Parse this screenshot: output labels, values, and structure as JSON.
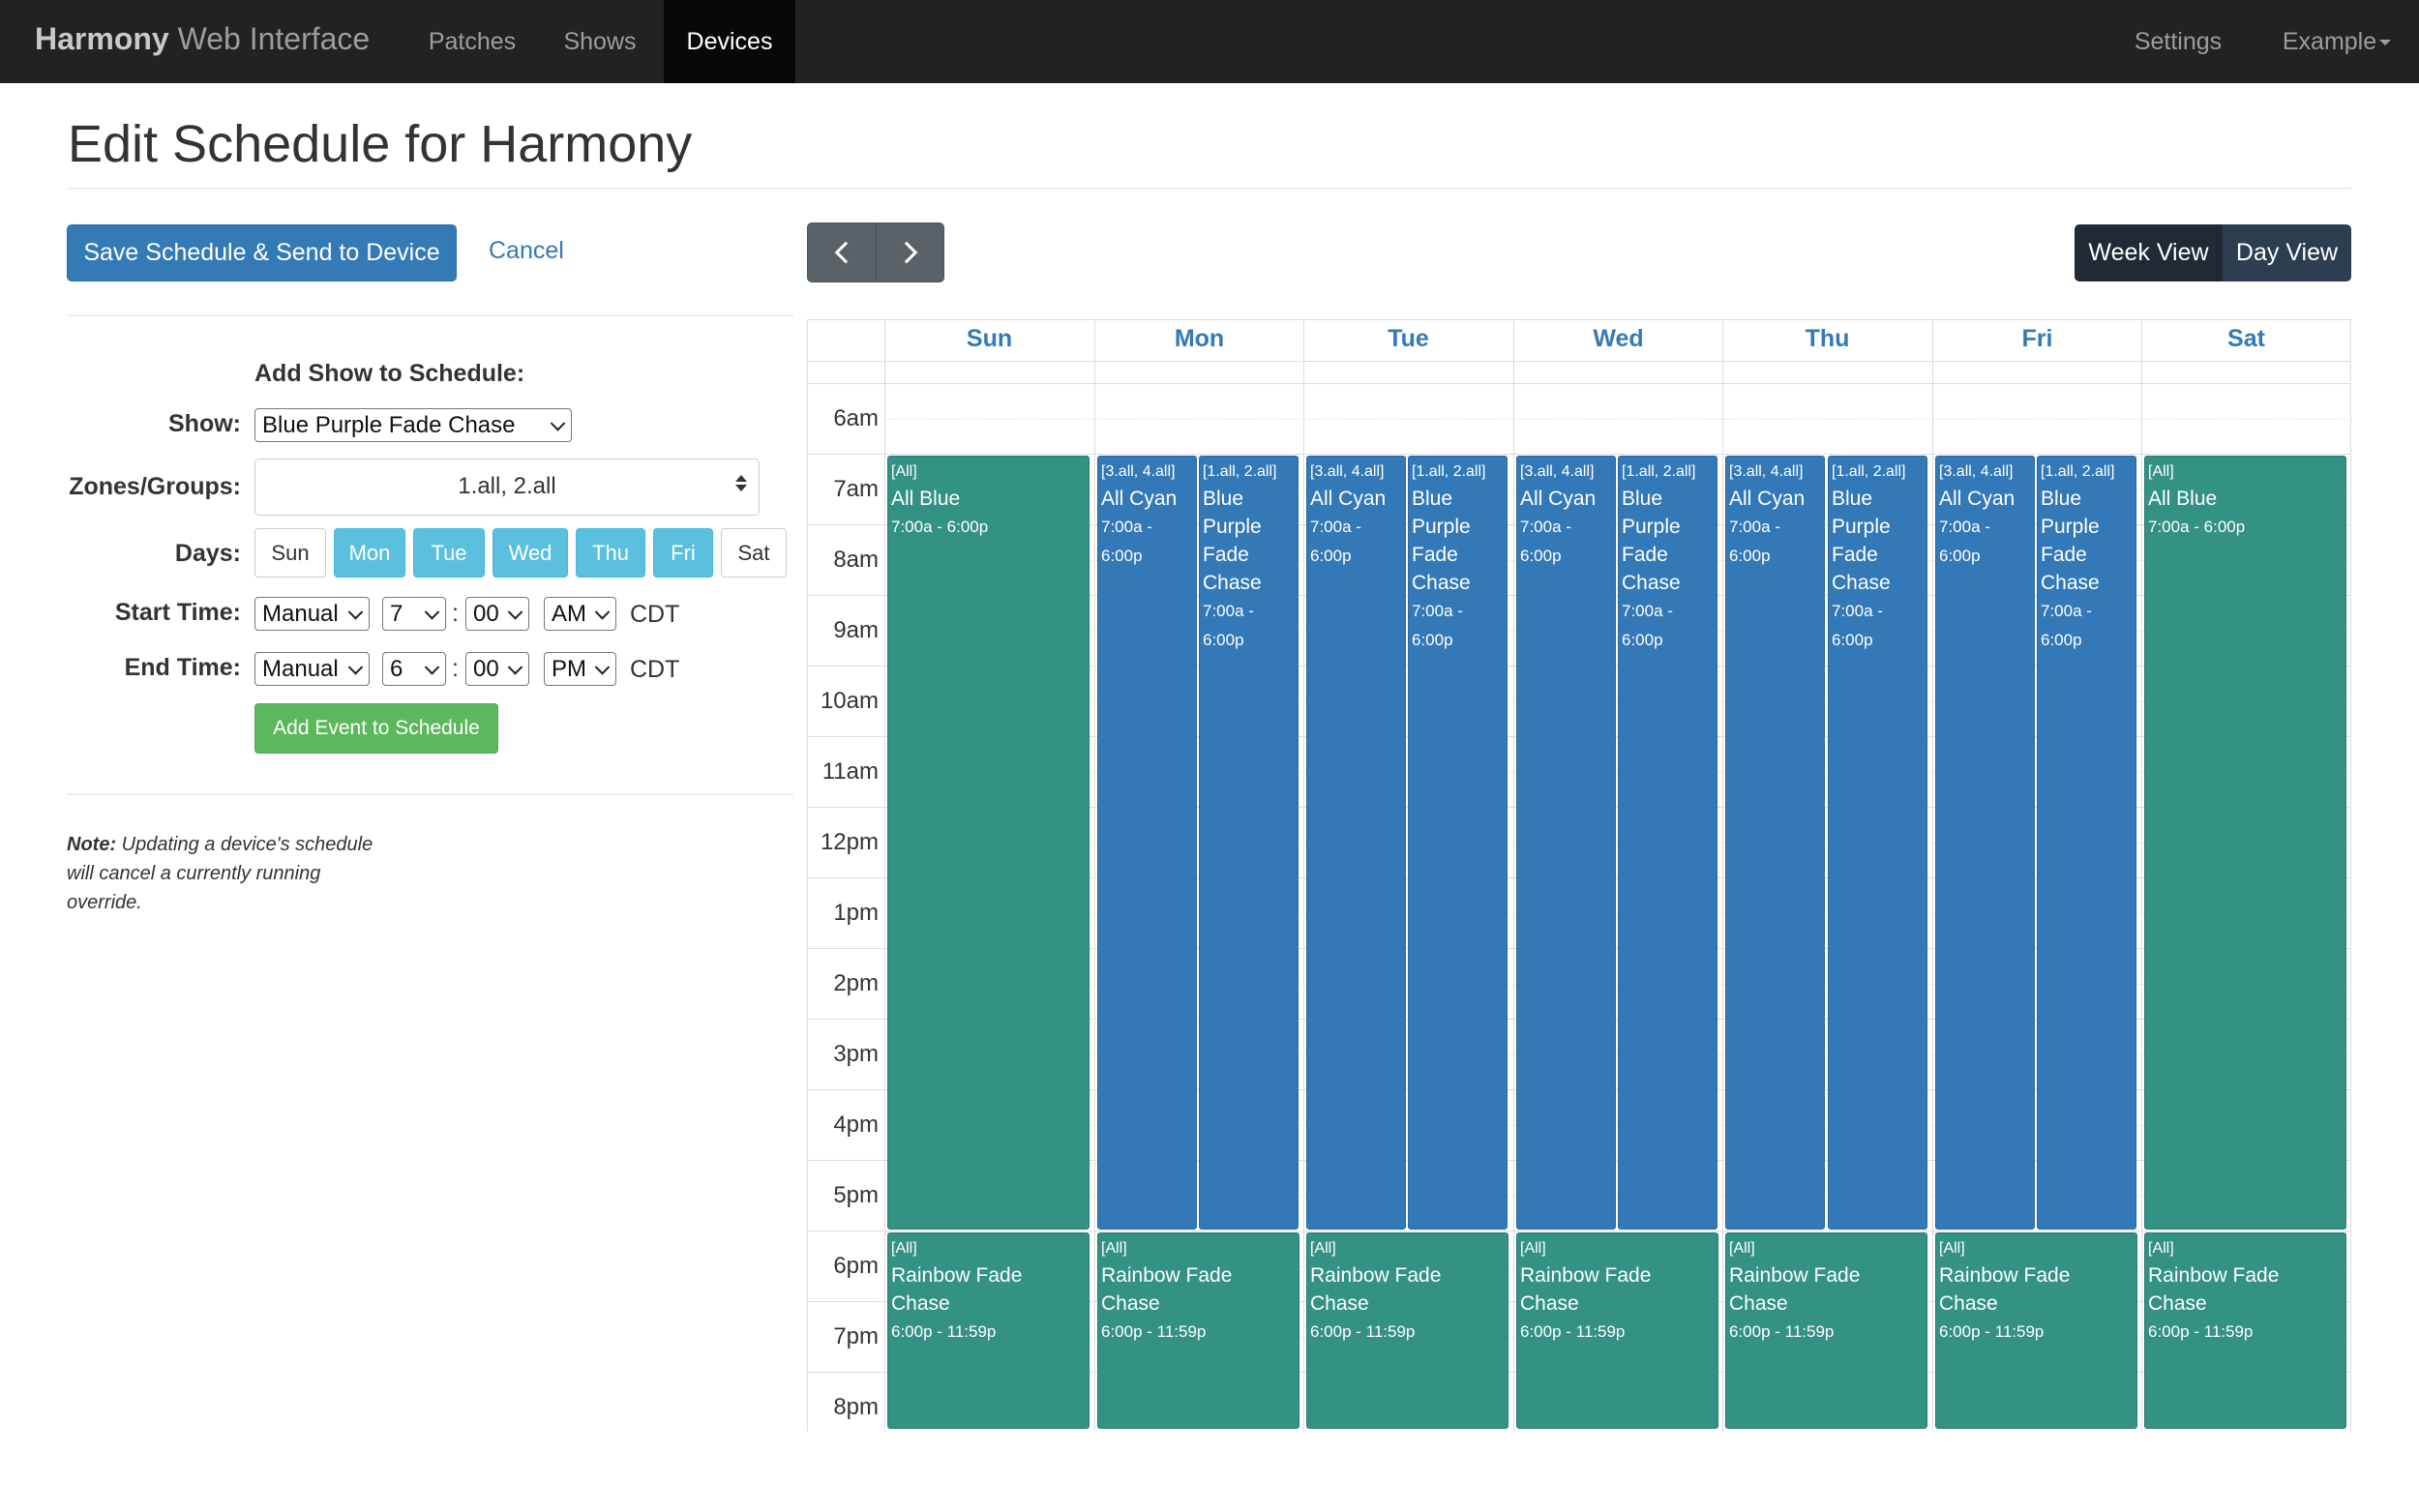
{
  "navbar": {
    "brand_bold": "Harmony",
    "brand_rest": " Web Interface",
    "links": [
      "Patches",
      "Shows",
      "Devices"
    ],
    "active": "Devices",
    "settings": "Settings",
    "user": "Example"
  },
  "page": {
    "title": "Edit Schedule for Harmony"
  },
  "toolbar": {
    "save_label": "Save Schedule & Send to Device",
    "cancel_label": "Cancel"
  },
  "form": {
    "heading": "Add Show to Schedule:",
    "show_label": "Show:",
    "show_value": "Blue Purple Fade Chase",
    "zones_label": "Zones/Groups:",
    "zones_value": "1.all, 2.all",
    "days_label": "Days:",
    "days": [
      {
        "label": "Sun",
        "selected": false
      },
      {
        "label": "Mon",
        "selected": true
      },
      {
        "label": "Tue",
        "selected": true
      },
      {
        "label": "Wed",
        "selected": true
      },
      {
        "label": "Thu",
        "selected": true
      },
      {
        "label": "Fri",
        "selected": true
      },
      {
        "label": "Sat",
        "selected": false
      }
    ],
    "start_label": "Start Time:",
    "start": {
      "mode": "Manual",
      "hour": "7",
      "minute": "00",
      "ampm": "AM"
    },
    "end_label": "End Time:",
    "end": {
      "mode": "Manual",
      "hour": "6",
      "minute": "00",
      "ampm": "PM"
    },
    "colon": ":",
    "tz": "CDT",
    "add_label": "Add Event to Schedule"
  },
  "note": {
    "bold": "Note:",
    "line1": " Updating a device's schedule",
    "line2": "will cancel a currently running",
    "line3": "override."
  },
  "calendar": {
    "view_week": "Week View",
    "view_day": "Day View",
    "days": [
      "Sun",
      "Mon",
      "Tue",
      "Wed",
      "Thu",
      "Fri",
      "Sat"
    ],
    "hours": [
      "6am",
      "7am",
      "8am",
      "9am",
      "10am",
      "11am",
      "12pm",
      "1pm",
      "2pm",
      "3pm",
      "4pm",
      "5pm",
      "6pm",
      "7pm",
      "8pm"
    ],
    "colors": {
      "teal": "#339283",
      "blue": "#3379b8"
    },
    "events": [
      {
        "day": 0,
        "col": 0,
        "cols": 1,
        "start": 7,
        "end": 18,
        "color": "teal",
        "zones": "[All]",
        "title": "All Blue",
        "time": "7:00a - 6:00p"
      },
      {
        "day": 0,
        "col": 0,
        "cols": 1,
        "start": 18,
        "end": 23.98,
        "color": "teal",
        "zones": "[All]",
        "title": "Rainbow Fade Chase",
        "time": "6:00p - 11:59p"
      },
      {
        "day": 1,
        "col": 0,
        "cols": 2,
        "start": 7,
        "end": 18,
        "color": "blue",
        "zones": "[3.all, 4.all]",
        "title": "All Cyan",
        "time": "7:00a - 6:00p"
      },
      {
        "day": 1,
        "col": 1,
        "cols": 2,
        "start": 7,
        "end": 18,
        "color": "blue",
        "zones": "[1.all, 2.all]",
        "title": "Blue Purple Fade Chase",
        "time": "7:00a - 6:00p"
      },
      {
        "day": 1,
        "col": 0,
        "cols": 1,
        "start": 18,
        "end": 23.98,
        "color": "teal",
        "zones": "[All]",
        "title": "Rainbow Fade Chase",
        "time": "6:00p - 11:59p"
      },
      {
        "day": 2,
        "col": 0,
        "cols": 2,
        "start": 7,
        "end": 18,
        "color": "blue",
        "zones": "[3.all, 4.all]",
        "title": "All Cyan",
        "time": "7:00a - 6:00p"
      },
      {
        "day": 2,
        "col": 1,
        "cols": 2,
        "start": 7,
        "end": 18,
        "color": "blue",
        "zones": "[1.all, 2.all]",
        "title": "Blue Purple Fade Chase",
        "time": "7:00a - 6:00p"
      },
      {
        "day": 2,
        "col": 0,
        "cols": 1,
        "start": 18,
        "end": 23.98,
        "color": "teal",
        "zones": "[All]",
        "title": "Rainbow Fade Chase",
        "time": "6:00p - 11:59p"
      },
      {
        "day": 3,
        "col": 0,
        "cols": 2,
        "start": 7,
        "end": 18,
        "color": "blue",
        "zones": "[3.all, 4.all]",
        "title": "All Cyan",
        "time": "7:00a - 6:00p"
      },
      {
        "day": 3,
        "col": 1,
        "cols": 2,
        "start": 7,
        "end": 18,
        "color": "blue",
        "zones": "[1.all, 2.all]",
        "title": "Blue Purple Fade Chase",
        "time": "7:00a - 6:00p"
      },
      {
        "day": 3,
        "col": 0,
        "cols": 1,
        "start": 18,
        "end": 23.98,
        "color": "teal",
        "zones": "[All]",
        "title": "Rainbow Fade Chase",
        "time": "6:00p - 11:59p"
      },
      {
        "day": 4,
        "col": 0,
        "cols": 2,
        "start": 7,
        "end": 18,
        "color": "blue",
        "zones": "[3.all, 4.all]",
        "title": "All Cyan",
        "time": "7:00a - 6:00p"
      },
      {
        "day": 4,
        "col": 1,
        "cols": 2,
        "start": 7,
        "end": 18,
        "color": "blue",
        "zones": "[1.all, 2.all]",
        "title": "Blue Purple Fade Chase",
        "time": "7:00a - 6:00p"
      },
      {
        "day": 4,
        "col": 0,
        "cols": 1,
        "start": 18,
        "end": 23.98,
        "color": "teal",
        "zones": "[All]",
        "title": "Rainbow Fade Chase",
        "time": "6:00p - 11:59p"
      },
      {
        "day": 5,
        "col": 0,
        "cols": 2,
        "start": 7,
        "end": 18,
        "color": "blue",
        "zones": "[3.all, 4.all]",
        "title": "All Cyan",
        "time": "7:00a - 6:00p"
      },
      {
        "day": 5,
        "col": 1,
        "cols": 2,
        "start": 7,
        "end": 18,
        "color": "blue",
        "zones": "[1.all, 2.all]",
        "title": "Blue Purple Fade Chase",
        "time": "7:00a - 6:00p"
      },
      {
        "day": 5,
        "col": 0,
        "cols": 1,
        "start": 18,
        "end": 23.98,
        "color": "teal",
        "zones": "[All]",
        "title": "Rainbow Fade Chase",
        "time": "6:00p - 11:59p"
      },
      {
        "day": 6,
        "col": 0,
        "cols": 1,
        "start": 7,
        "end": 18,
        "color": "teal",
        "zones": "[All]",
        "title": "All Blue",
        "time": "7:00a - 6:00p"
      },
      {
        "day": 6,
        "col": 0,
        "cols": 1,
        "start": 18,
        "end": 23.98,
        "color": "teal",
        "zones": "[All]",
        "title": "Rainbow Fade Chase",
        "time": "6:00p - 11:59p"
      }
    ]
  }
}
